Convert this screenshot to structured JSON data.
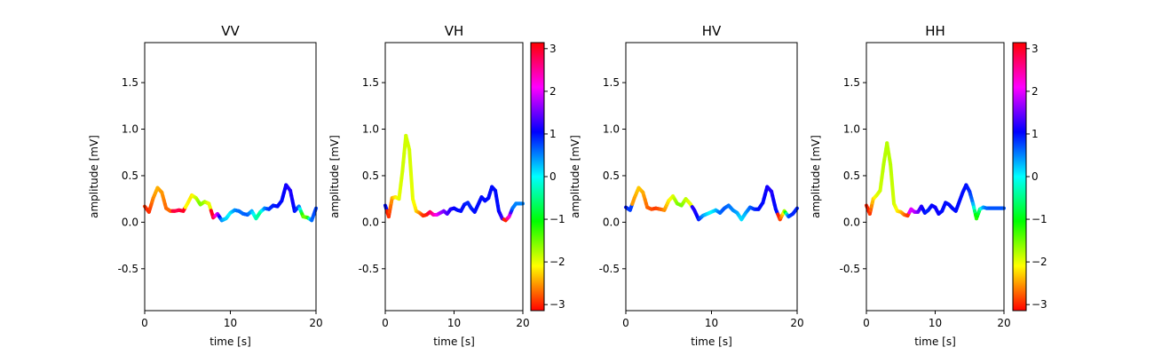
{
  "chart_data": [
    {
      "type": "line",
      "title": "VV",
      "xlabel": "time [s]",
      "ylabel": "amplitude [mV]",
      "xlim": [
        0,
        20
      ],
      "ylim": [
        -0.95,
        1.93
      ],
      "xticks": [
        "0",
        "10",
        "20"
      ],
      "yticks": [
        "-0.5",
        "0.0",
        "0.5",
        "1.0",
        "1.5"
      ],
      "colorbar": false,
      "series": [
        {
          "x": [
            0,
            0.5,
            1.0,
            1.5,
            2.0,
            2.5,
            3.0,
            3.5,
            4.0,
            4.5,
            5.0,
            5.5,
            6.0,
            6.5,
            7.0,
            7.5,
            8.0,
            8.5,
            9.0,
            9.5,
            10.0,
            10.5,
            11.0,
            11.5,
            12.0,
            12.5,
            13.0,
            13.5,
            14.0,
            14.5,
            15.0,
            15.5,
            16.0,
            16.5,
            17.0,
            17.5,
            18.0,
            18.5,
            19.0,
            19.5,
            20.0
          ],
          "y": [
            0.17,
            0.11,
            0.26,
            0.37,
            0.32,
            0.15,
            0.12,
            0.12,
            0.13,
            0.12,
            0.2,
            0.29,
            0.26,
            0.19,
            0.22,
            0.2,
            0.05,
            0.09,
            0.02,
            0.04,
            0.1,
            0.13,
            0.12,
            0.09,
            0.08,
            0.12,
            0.04,
            0.11,
            0.15,
            0.14,
            0.18,
            0.17,
            0.23,
            0.4,
            0.34,
            0.12,
            0.17,
            0.06,
            0.05,
            0.02,
            0.15
          ],
          "phase": [
            -2.9,
            -3.0,
            -2.6,
            -2.4,
            -2.5,
            -2.7,
            -2.7,
            2.9,
            2.8,
            3.0,
            -2.1,
            -2.2,
            -1.9,
            -1.5,
            -1.7,
            -2.0,
            3.0,
            2.0,
            0.5,
            0.2,
            0.0,
            0.4,
            0.6,
            0.6,
            0.7,
            0.4,
            -0.3,
            -0.5,
            0.4,
            0.8,
            0.9,
            1.0,
            1.0,
            1.1,
            1.2,
            1.0,
            0.8,
            -1.5,
            -1.5,
            0.6,
            0.8
          ]
        }
      ]
    },
    {
      "type": "line",
      "title": "VH",
      "xlabel": "time [s]",
      "ylabel": "amplitude [mV]",
      "xlim": [
        0,
        20
      ],
      "ylim": [
        -0.95,
        1.93
      ],
      "xticks": [
        "0",
        "10",
        "20"
      ],
      "yticks": [
        "-0.5",
        "0.0",
        "0.5",
        "1.0",
        "1.5"
      ],
      "colorbar": true,
      "series": [
        {
          "x": [
            0,
            0.5,
            1.0,
            1.5,
            2.0,
            2.5,
            3.0,
            3.5,
            4.0,
            4.5,
            5.0,
            5.5,
            6.0,
            6.5,
            7.0,
            7.5,
            8.0,
            8.5,
            9.0,
            9.5,
            10.0,
            10.5,
            11.0,
            11.5,
            12.0,
            12.5,
            13.0,
            13.5,
            14.0,
            14.5,
            15.0,
            15.5,
            16.0,
            16.5,
            17.0,
            17.5,
            18.0,
            18.5,
            19.0,
            19.5,
            20.0
          ],
          "y": [
            0.18,
            0.06,
            0.26,
            0.27,
            0.25,
            0.55,
            0.93,
            0.78,
            0.25,
            0.12,
            0.1,
            0.07,
            0.08,
            0.11,
            0.08,
            0.08,
            0.1,
            0.12,
            0.09,
            0.14,
            0.15,
            0.13,
            0.12,
            0.19,
            0.21,
            0.15,
            0.11,
            0.19,
            0.27,
            0.23,
            0.26,
            0.38,
            0.34,
            0.12,
            0.04,
            0.02,
            0.06,
            0.15,
            0.2,
            0.2,
            0.2
          ],
          "phase": [
            1.0,
            -3.0,
            -2.5,
            -2.2,
            -2.0,
            -1.9,
            -1.9,
            -1.9,
            -2.0,
            -2.2,
            -2.5,
            -2.9,
            -3.0,
            2.9,
            2.5,
            2.2,
            1.8,
            1.6,
            1.4,
            1.2,
            1.1,
            1.0,
            1.0,
            1.0,
            0.9,
            0.9,
            1.0,
            1.0,
            1.0,
            1.0,
            1.0,
            1.0,
            1.0,
            1.0,
            1.3,
            -3.0,
            2.5,
            0.6,
            0.5,
            0.5,
            0.5
          ]
        }
      ]
    },
    {
      "type": "line",
      "title": "HV",
      "xlabel": "time [s]",
      "ylabel": "amplitude [mV]",
      "xlim": [
        0,
        20
      ],
      "ylim": [
        -0.95,
        1.93
      ],
      "xticks": [
        "0",
        "10",
        "20"
      ],
      "yticks": [
        "-0.5",
        "0.0",
        "0.5",
        "1.0",
        "1.5"
      ],
      "colorbar": false,
      "series": [
        {
          "x": [
            0,
            0.5,
            1.0,
            1.5,
            2.0,
            2.5,
            3.0,
            3.5,
            4.0,
            4.5,
            5.0,
            5.5,
            6.0,
            6.5,
            7.0,
            7.5,
            8.0,
            8.5,
            9.0,
            9.5,
            10.0,
            10.5,
            11.0,
            11.5,
            12.0,
            12.5,
            13.0,
            13.5,
            14.0,
            14.5,
            15.0,
            15.5,
            16.0,
            16.5,
            17.0,
            17.5,
            18.0,
            18.5,
            19.0,
            19.5,
            20.0
          ],
          "y": [
            0.16,
            0.13,
            0.26,
            0.37,
            0.32,
            0.16,
            0.14,
            0.15,
            0.14,
            0.13,
            0.23,
            0.28,
            0.2,
            0.18,
            0.25,
            0.2,
            0.13,
            0.03,
            0.07,
            0.09,
            0.11,
            0.13,
            0.1,
            0.15,
            0.18,
            0.13,
            0.1,
            0.03,
            0.1,
            0.16,
            0.14,
            0.14,
            0.21,
            0.38,
            0.33,
            0.14,
            0.03,
            0.12,
            0.06,
            0.09,
            0.15
          ],
          "phase": [
            1.0,
            0.8,
            -2.5,
            -2.3,
            -2.4,
            -2.7,
            -2.8,
            -2.9,
            -2.8,
            -2.6,
            -2.2,
            -2.0,
            -1.6,
            -1.5,
            -1.8,
            -2.0,
            1.2,
            1.0,
            0.5,
            0.2,
            0.0,
            0.2,
            0.6,
            0.7,
            0.6,
            0.5,
            0.4,
            0.1,
            0.3,
            0.6,
            0.8,
            1.0,
            1.0,
            1.1,
            1.2,
            1.0,
            -3.0,
            -2.0,
            0.7,
            0.9,
            0.9
          ]
        }
      ]
    },
    {
      "type": "line",
      "title": "HH",
      "xlabel": "time [s]",
      "ylabel": "amplitude [mV]",
      "xlim": [
        0,
        20
      ],
      "ylim": [
        -0.95,
        1.93
      ],
      "xticks": [
        "0",
        "10",
        "20"
      ],
      "yticks": [
        "-0.5",
        "0.0",
        "0.5",
        "1.0",
        "1.5"
      ],
      "colorbar": true,
      "series": [
        {
          "x": [
            0,
            0.5,
            1.0,
            1.5,
            2.0,
            2.5,
            3.0,
            3.5,
            4.0,
            4.5,
            5.0,
            5.5,
            6.0,
            6.5,
            7.0,
            7.5,
            8.0,
            8.5,
            9.0,
            9.5,
            10.0,
            10.5,
            11.0,
            11.5,
            12.0,
            12.5,
            13.0,
            13.5,
            14.0,
            14.5,
            15.0,
            15.5,
            16.0,
            16.5,
            17.0,
            17.5,
            18.0,
            18.5,
            19.0,
            19.5,
            20.0
          ],
          "y": [
            0.18,
            0.09,
            0.25,
            0.29,
            0.34,
            0.62,
            0.85,
            0.62,
            0.2,
            0.12,
            0.11,
            0.08,
            0.07,
            0.14,
            0.11,
            0.11,
            0.17,
            0.1,
            0.13,
            0.18,
            0.16,
            0.09,
            0.12,
            0.21,
            0.19,
            0.15,
            0.12,
            0.22,
            0.32,
            0.4,
            0.33,
            0.2,
            0.04,
            0.14,
            0.16,
            0.15,
            0.15,
            0.15,
            0.15,
            0.15,
            0.15
          ],
          "phase": [
            -3.0,
            -3.0,
            -2.3,
            -2.0,
            -1.9,
            -1.8,
            -1.8,
            -1.8,
            -1.9,
            -2.1,
            -2.3,
            -2.6,
            -2.9,
            2.0,
            1.9,
            1.6,
            1.2,
            1.0,
            0.9,
            1.0,
            1.1,
            1.1,
            1.0,
            1.0,
            1.0,
            1.0,
            1.0,
            1.0,
            1.0,
            1.0,
            0.9,
            0.5,
            -1.3,
            -0.6,
            0.3,
            0.6,
            0.7,
            0.7,
            0.7,
            0.7,
            0.7
          ]
        }
      ]
    }
  ],
  "colorbar": {
    "range": [
      -3.14159,
      3.14159
    ],
    "ticks": [
      "3",
      "2",
      "1",
      "0",
      "−1",
      "−2",
      "−3"
    ],
    "colormap": "hsv"
  }
}
